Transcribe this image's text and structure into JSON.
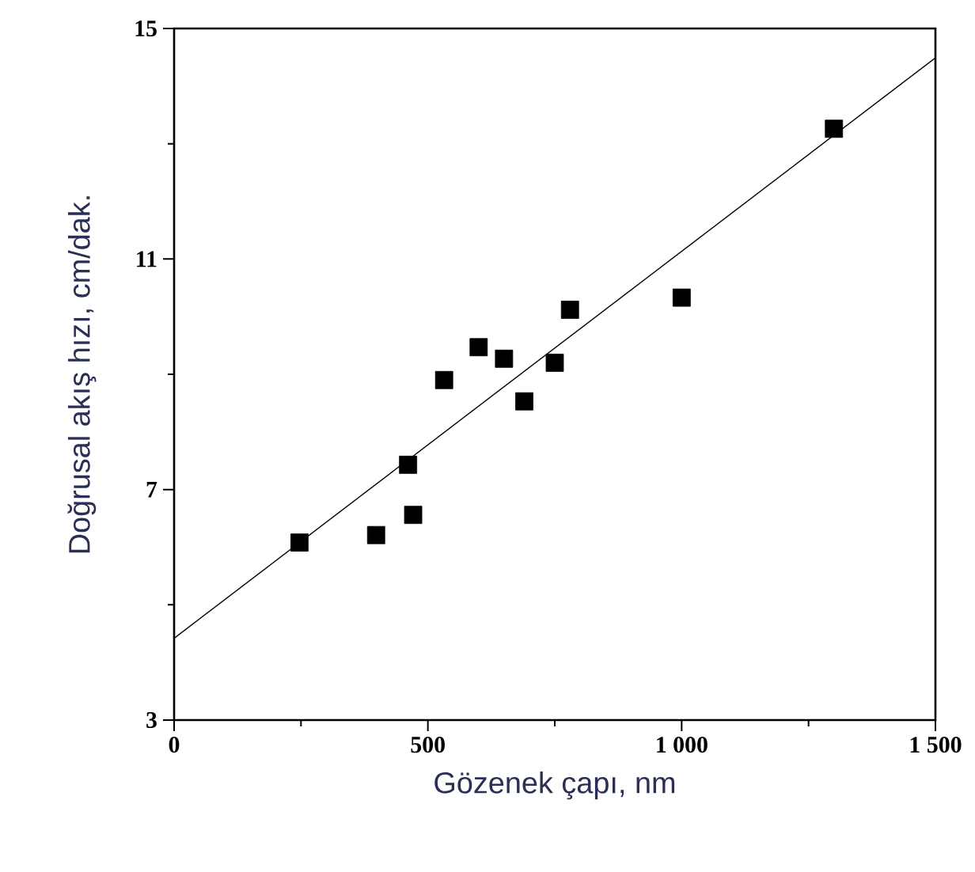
{
  "chart_data": {
    "type": "scatter",
    "xlabel": "Gözenek çapı, nm",
    "ylabel": "Doğrusal akış hızı, cm/dak.",
    "xlim": [
      0,
      1500
    ],
    "ylim": [
      3,
      15
    ],
    "xticks": [
      0,
      {
        "value": 250,
        "label": null
      },
      500,
      {
        "value": 750,
        "label": null
      },
      {
        "value": 1000,
        "label": "1 000"
      },
      {
        "value": 1250,
        "label": null
      },
      {
        "value": 1500,
        "label": "1 500"
      }
    ],
    "yticks": [
      3,
      {
        "value": 5,
        "label": null
      },
      7,
      {
        "value": 9,
        "label": null
      },
      11,
      {
        "value": 13,
        "label": null
      },
      15
    ],
    "series": [
      {
        "marker": "square",
        "color": "#000000",
        "x": [
          247,
          398,
          461,
          471,
          532,
          600,
          650,
          690,
          750,
          780,
          1000,
          1300
        ],
        "values": [
          6.08,
          6.21,
          7.43,
          6.56,
          8.9,
          9.47,
          9.27,
          8.53,
          9.2,
          10.12,
          10.33,
          13.26
        ]
      },
      {
        "type": "line",
        "marker": "none",
        "line_style": "solid",
        "color": "#000000",
        "x": [
          0,
          1500
        ],
        "values": [
          4.42,
          14.49
        ]
      }
    ]
  }
}
